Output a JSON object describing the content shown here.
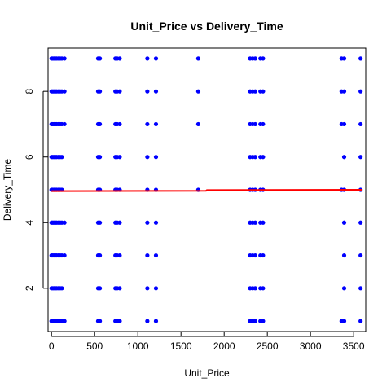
{
  "chart_data": {
    "type": "scatter",
    "title": "Unit_Price vs Delivery_Time",
    "xlabel": "Unit_Price",
    "ylabel": "Delivery_Time",
    "xlim": [
      -40,
      3640
    ],
    "ylim": [
      0.68,
      9.32
    ],
    "x_ticks": [
      0,
      500,
      1000,
      1500,
      2000,
      2500,
      3000,
      3500
    ],
    "y_ticks": [
      2,
      4,
      6,
      8
    ],
    "grid": false,
    "legend": "none",
    "point_color": "#0000ff",
    "line_color": "#ff0000",
    "unit_price_values": [
      0,
      15,
      30,
      45,
      60,
      80,
      100,
      120,
      150,
      540,
      560,
      740,
      760,
      790,
      1110,
      1210,
      1700,
      2300,
      2330,
      2360,
      2420,
      2450,
      3360,
      3390,
      3580
    ],
    "delivery_time_values": [
      1,
      2,
      3,
      4,
      5,
      6,
      7,
      8,
      9
    ],
    "missing_points": [
      {
        "x": 150,
        "y": 2
      },
      {
        "x": 150,
        "y": 5
      },
      {
        "x": 150,
        "y": 6
      },
      {
        "x": 1700,
        "y": 1
      },
      {
        "x": 1700,
        "y": 2
      },
      {
        "x": 1700,
        "y": 3
      },
      {
        "x": 1700,
        "y": 4
      },
      {
        "x": 1700,
        "y": 6
      },
      {
        "x": 3360,
        "y": 2
      },
      {
        "x": 3360,
        "y": 3
      },
      {
        "x": 3360,
        "y": 4
      },
      {
        "x": 3360,
        "y": 6
      }
    ],
    "smooth_line": [
      {
        "x": 0,
        "y": 4.96
      },
      {
        "x": 1790,
        "y": 4.97
      },
      {
        "x": 1800,
        "y": 4.99
      },
      {
        "x": 3600,
        "y": 5.0
      }
    ]
  }
}
